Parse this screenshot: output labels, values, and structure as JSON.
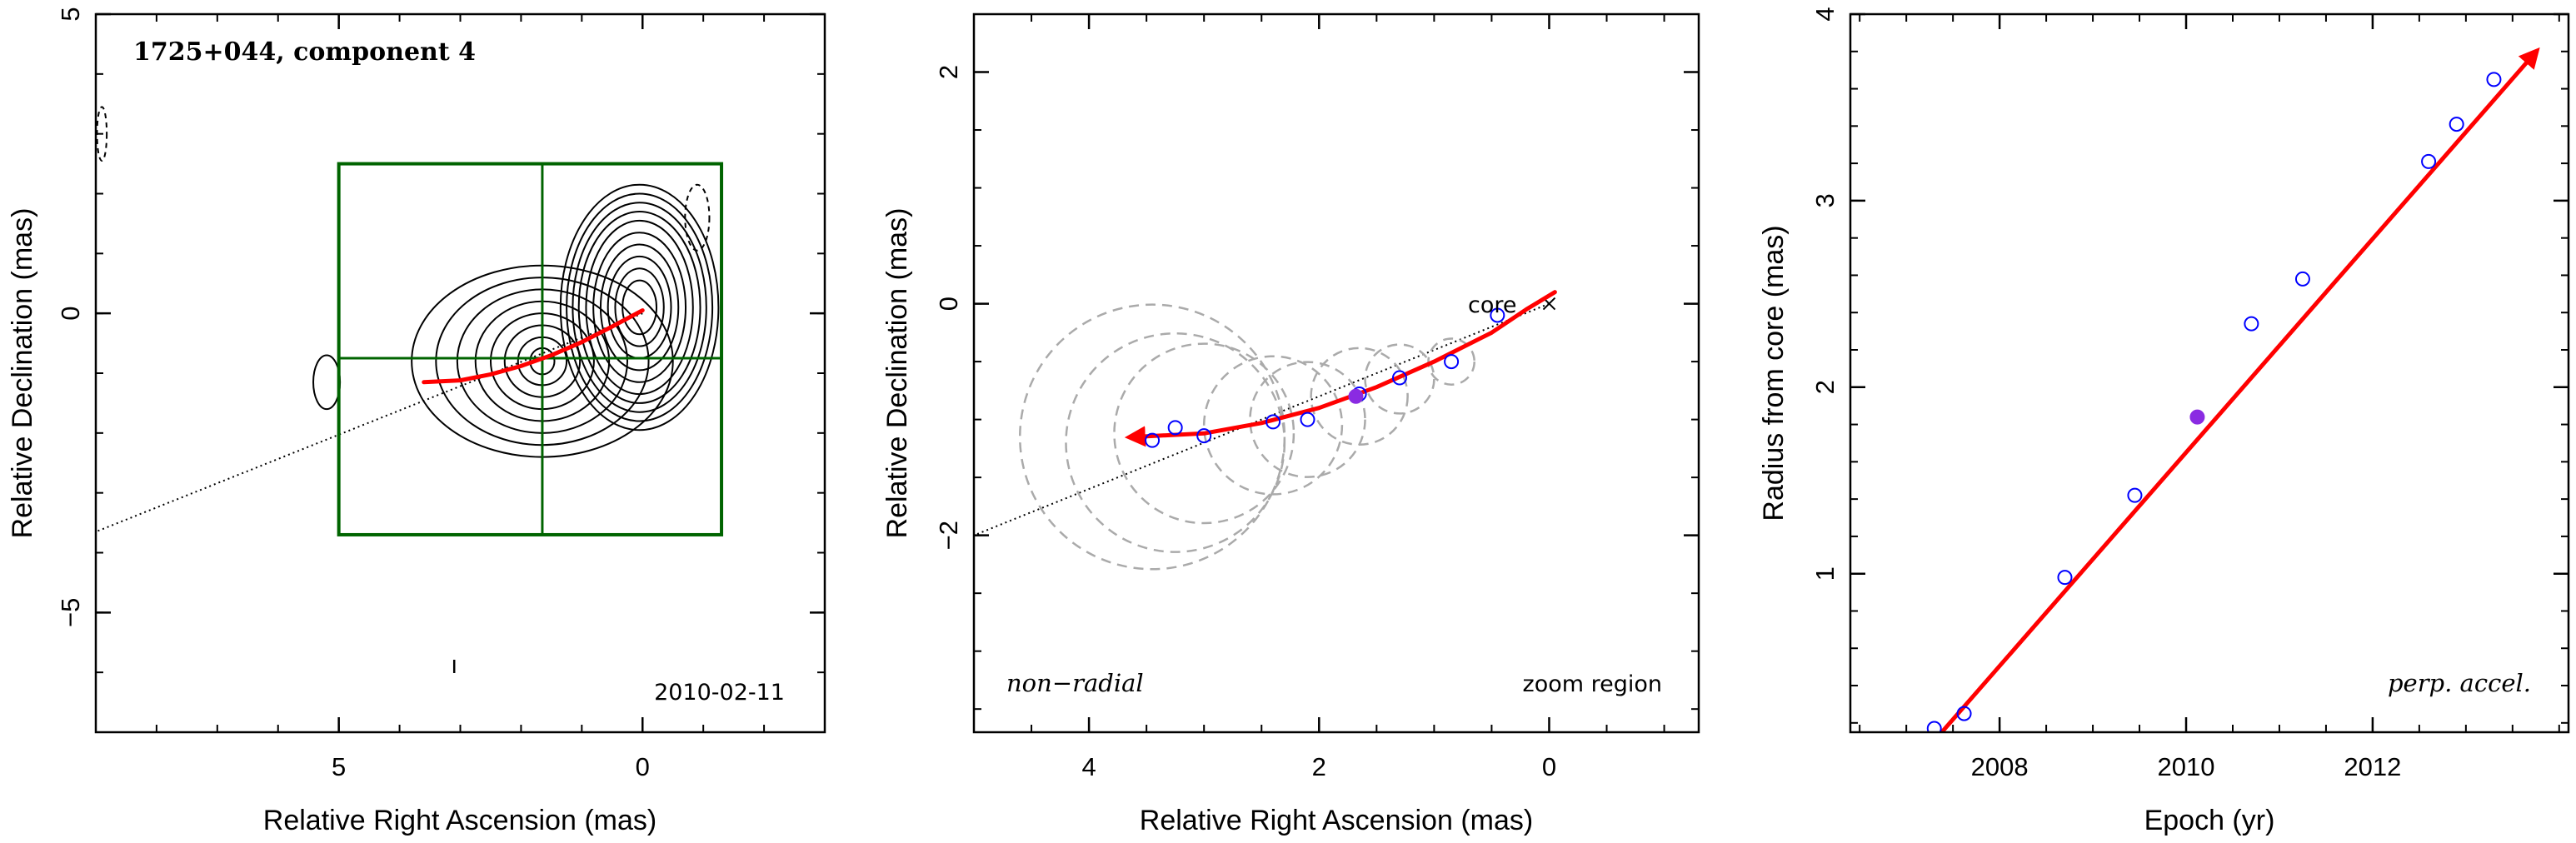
{
  "chart_data": [
    {
      "type": "scatter",
      "panel": "image",
      "title": "1725+044, component 4",
      "date_label": "2010-02-11",
      "xlabel": "Relative Right Ascension (mas)",
      "ylabel": "Relative Declination (mas)",
      "xlim": [
        9.0,
        -3.0
      ],
      "ylim": [
        -7.0,
        5.0
      ],
      "xticks": [
        5,
        0
      ],
      "yticks": [
        5,
        0,
        -5
      ],
      "xtick_labels": [
        "5",
        "0"
      ],
      "ytick_labels": [
        "5",
        "0",
        "−5"
      ],
      "zoom_box": {
        "x": [
          5.0,
          -1.3
        ],
        "y": [
          -3.7,
          2.5
        ]
      },
      "crosshair": {
        "x": 1.65,
        "y": -0.75
      },
      "radial_line": {
        "x": [
          0,
          9.0
        ],
        "y": [
          0,
          -3.65
        ]
      },
      "path": {
        "x": [
          3.6,
          3.0,
          2.5,
          2.0,
          1.5,
          1.0,
          0.5,
          0.0
        ],
        "y": [
          -1.15,
          -1.12,
          -1.02,
          -0.88,
          -0.7,
          -0.48,
          -0.22,
          0.05
        ]
      },
      "contours": [
        {
          "cx": 0.05,
          "cy": 0.1,
          "rx": [
            0.28,
            0.4,
            0.52,
            0.64,
            0.76,
            0.88,
            1.0,
            1.1,
            1.2,
            1.3
          ],
          "ry": [
            0.45,
            0.65,
            0.85,
            1.05,
            1.25,
            1.45,
            1.6,
            1.75,
            1.9,
            2.05
          ]
        },
        {
          "cx": 1.65,
          "cy": -0.8,
          "rx": [
            0.2,
            0.4,
            0.62,
            0.85,
            1.1,
            1.4,
            1.75,
            2.15
          ],
          "ry": [
            0.22,
            0.4,
            0.6,
            0.8,
            1.0,
            1.2,
            1.4,
            1.6
          ]
        }
      ],
      "negative_contours": [
        {
          "cx": -0.9,
          "cy": 1.6,
          "rx": 0.2,
          "ry": 0.55
        },
        {
          "cx": 8.9,
          "cy": 3.0,
          "rx": 0.08,
          "ry": 0.45
        }
      ],
      "isolated_blob": {
        "cx": 5.2,
        "cy": -1.15,
        "rx": 0.22,
        "ry": 0.45
      },
      "beam_marker": {
        "x": 3.1,
        "y": -5.9
      }
    },
    {
      "type": "scatter",
      "panel": "zoom",
      "xlabel": "Relative Right Ascension (mas)",
      "ylabel": "Relative Declination (mas)",
      "annotation_left": "non−radial",
      "annotation_right": "zoom region",
      "core_label": "core",
      "xlim": [
        5.0,
        -1.3
      ],
      "ylim": [
        -3.7,
        2.5
      ],
      "xticks": [
        4,
        2,
        0
      ],
      "yticks": [
        2,
        0,
        -2
      ],
      "xtick_labels": [
        "4",
        "2",
        "0"
      ],
      "ytick_labels": [
        "2",
        "0",
        "−2"
      ],
      "core_position": {
        "x": 0.0,
        "y": 0.0
      },
      "radial_line": {
        "x": [
          0,
          5.0
        ],
        "y": [
          0,
          -2.0
        ]
      },
      "component_positions": {
        "x": [
          3.45,
          3.25,
          3.0,
          2.4,
          2.1,
          1.65,
          1.3,
          0.85,
          0.45
        ],
        "y": [
          -1.18,
          -1.07,
          -1.14,
          -1.02,
          -1.0,
          -0.78,
          -0.64,
          -0.5,
          -0.1
        ]
      },
      "highlighted_point": {
        "x": 1.68,
        "y": -0.8
      },
      "component_sizes": {
        "x": [
          3.45,
          3.25,
          3.0,
          2.4,
          2.1,
          1.65,
          1.3,
          0.85
        ],
        "y": [
          -1.15,
          -1.2,
          -1.12,
          -1.05,
          -1.0,
          -0.8,
          -0.65,
          -0.5
        ],
        "r": [
          1.15,
          0.95,
          0.78,
          0.6,
          0.5,
          0.42,
          0.3,
          0.2
        ]
      },
      "path": {
        "x": [
          3.6,
          3.0,
          2.5,
          2.0,
          1.5,
          1.0,
          0.5,
          0.2,
          -0.05
        ],
        "y": [
          -1.15,
          -1.12,
          -1.03,
          -0.9,
          -0.72,
          -0.5,
          -0.25,
          -0.05,
          0.1
        ]
      }
    },
    {
      "type": "scatter",
      "panel": "radius",
      "xlabel": "Epoch (yr)",
      "ylabel": "Radius from core (mas)",
      "annotation": "perp. accel.",
      "xlim": [
        2006.4,
        2014.1
      ],
      "ylim": [
        0.15,
        4.0
      ],
      "xticks": [
        2008,
        2010,
        2012
      ],
      "yticks": [
        1,
        2,
        3,
        4
      ],
      "xtick_labels": [
        "2008",
        "2010",
        "2012"
      ],
      "ytick_labels": [
        "1",
        "2",
        "3",
        "4"
      ],
      "epochs": [
        2007.3,
        2007.62,
        2008.7,
        2009.45,
        2010.7,
        2011.25,
        2012.6,
        2012.9,
        2013.3
      ],
      "radii": [
        0.17,
        0.25,
        0.98,
        1.42,
        2.34,
        2.58,
        3.21,
        3.41,
        3.65
      ],
      "highlighted_point": {
        "x": 2010.12,
        "y": 1.84
      },
      "fit": {
        "x": [
          2007.38,
          2013.72
        ],
        "y": [
          0.15,
          3.78
        ]
      }
    }
  ],
  "colors": {
    "path": "#ff0000",
    "box": "#006400",
    "points": "#0000ff",
    "highlight": "#8a2be2",
    "size_circles": "#aaaaaa",
    "contours": "#000000"
  }
}
